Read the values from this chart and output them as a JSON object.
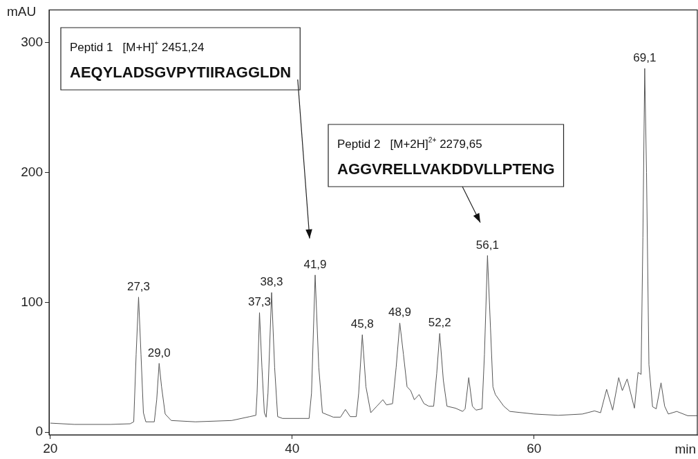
{
  "chart_data": {
    "type": "line",
    "xlabel": "min",
    "ylabel": "mAU",
    "xlim": [
      19.9,
      73.5
    ],
    "ylim": [
      -2,
      325
    ],
    "xticks": [
      20,
      40,
      60
    ],
    "yticks": [
      0,
      100,
      200,
      300
    ],
    "grid": false,
    "legend": false,
    "marker": "none",
    "line_style": "solid",
    "series": [
      {
        "color": "#555555",
        "x": [
          20,
          22,
          25,
          26.6,
          26.9,
          27.1,
          27.3,
          27.5,
          27.7,
          27.9,
          28.6,
          28.8,
          29.0,
          29.2,
          29.5,
          30,
          32,
          35,
          36.5,
          37.0,
          37.1,
          37.3,
          37.5,
          37.7,
          37.85,
          38.0,
          38.3,
          38.55,
          38.8,
          39.2,
          41.4,
          41.6,
          41.9,
          42.2,
          42.5,
          43.4,
          44.0,
          44.4,
          44.8,
          45.3,
          45.5,
          45.8,
          46.1,
          46.5,
          47.0,
          47.5,
          47.8,
          48.3,
          48.6,
          48.9,
          49.2,
          49.5,
          49.8,
          50.1,
          50.5,
          50.9,
          51.3,
          51.7,
          51.95,
          52.2,
          52.5,
          52.8,
          53.5,
          54.1,
          54.3,
          54.6,
          54.9,
          55.2,
          55.7,
          55.9,
          56.15,
          56.4,
          56.6,
          56.8,
          57.5,
          58,
          60,
          62,
          64,
          65,
          65.5,
          66,
          66.5,
          67,
          67.3,
          67.7,
          68.3,
          68.6,
          68.85,
          69.0,
          69.15,
          69.3,
          69.5,
          69.8,
          70.1,
          70.5,
          70.8,
          71.1,
          71.8,
          72.7,
          73.5
        ],
        "values": [
          7,
          6,
          6,
          6.5,
          8,
          60,
          104,
          60,
          15,
          8,
          8,
          25,
          53,
          35,
          14,
          9,
          8,
          9,
          12,
          13,
          30,
          92,
          50,
          15,
          11.6,
          30,
          107.5,
          50,
          12,
          10.6,
          10.6,
          30,
          121,
          50,
          15,
          11.6,
          11.6,
          17.5,
          12,
          12,
          30,
          75,
          35,
          15,
          20,
          25,
          21,
          22,
          50,
          84,
          60,
          35,
          32,
          25,
          29,
          22,
          20,
          20,
          45,
          76,
          40,
          20,
          18.5,
          16,
          18,
          42,
          20,
          17,
          18,
          60,
          136,
          80,
          35,
          29,
          20,
          16,
          14,
          13,
          14,
          16.4,
          15,
          33,
          17,
          42,
          32,
          41,
          18.5,
          46,
          44.5,
          150,
          280,
          200,
          52,
          19.6,
          18,
          38,
          20,
          14,
          16,
          12.7,
          12.7
        ]
      }
    ],
    "annotations": [
      {
        "text": "27,3",
        "x": 27.3,
        "y": 104
      },
      {
        "text": "29,0",
        "x": 29.0,
        "y": 53
      },
      {
        "text": "37,3",
        "x": 37.3,
        "y": 92
      },
      {
        "text": "38,3",
        "x": 38.3,
        "y": 107.5
      },
      {
        "text": "41,9",
        "x": 41.9,
        "y": 121
      },
      {
        "text": "45,8",
        "x": 45.8,
        "y": 75
      },
      {
        "text": "48,9",
        "x": 48.9,
        "y": 84
      },
      {
        "text": "52,2",
        "x": 52.2,
        "y": 76
      },
      {
        "text": "56,1",
        "x": 56.15,
        "y": 136
      },
      {
        "text": "69,1",
        "x": 69.15,
        "y": 280
      },
      "Peptid 1   [M+H]$^{+}$ 2451,24\nAEQYLADSGVPYTIIRAGGLDN",
      "Peptid 2   [M+2H]$^{2+}$ 2279,65\nAGGVRELLVAKDDVLLPTENG"
    ]
  }
}
